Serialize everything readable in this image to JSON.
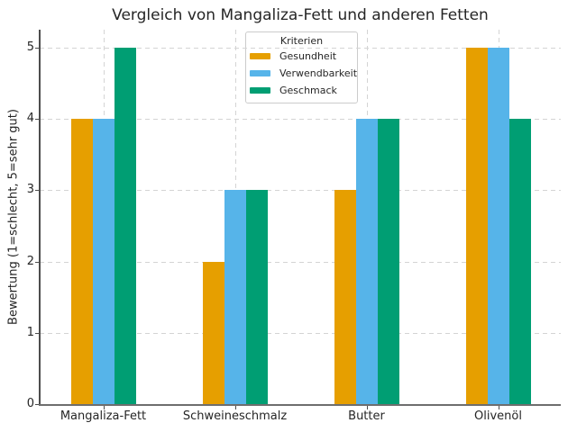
{
  "chart_data": {
    "type": "bar",
    "title": "Vergleich von Mangaliza-Fett und anderen Fetten",
    "xlabel": "",
    "ylabel": "Bewertung (1=schlecht, 5=sehr gut)",
    "categories": [
      "Mangaliza-Fett",
      "Schweineschmalz",
      "Butter",
      "Olivenöl"
    ],
    "series": [
      {
        "name": "Gesundheit",
        "color": "#E69F00",
        "values": [
          4,
          2,
          3,
          5
        ]
      },
      {
        "name": "Verwendbarkeit",
        "color": "#56B4E9",
        "values": [
          4,
          3,
          4,
          5
        ]
      },
      {
        "name": "Geschmack",
        "color": "#009E73",
        "values": [
          5,
          3,
          4,
          4
        ]
      }
    ],
    "legend_title": "Kriterien",
    "legend_position": "upper center, left of middle",
    "ylim": [
      0,
      5.25
    ],
    "yticks": [
      0,
      1,
      2,
      3,
      4,
      5
    ],
    "grid": "horizontal and vertical, light gray dashed",
    "background_color": "#ffffff",
    "text_color": "#262626"
  }
}
